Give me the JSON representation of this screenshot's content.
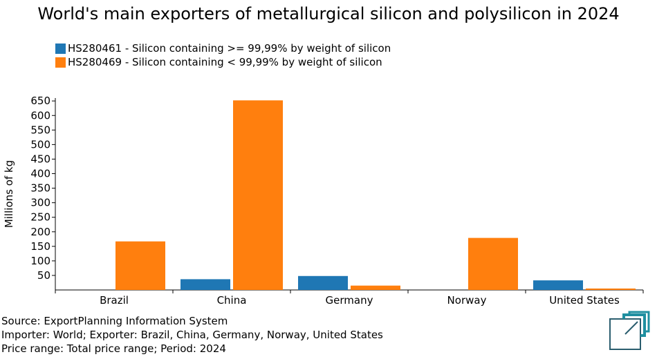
{
  "title": "World's main exporters of metallurgical silicon and polysilicon in 2024",
  "colors": {
    "series1": "#1f77b4",
    "series2": "#ff7f0e",
    "logo": "#1f8fa0",
    "logo_dark": "#2a5d6e"
  },
  "footer": {
    "source": "Source: ExportPlanning Information System",
    "importer": "Importer: World; Exporter: Brazil, China, Germany, Norway, United States",
    "price": "Price range: Total price range; Period: 2024"
  },
  "chart_data": {
    "type": "bar",
    "ylabel": "Millions of kg",
    "ylim": [
      0,
      660
    ],
    "yticks": [
      50,
      100,
      150,
      200,
      250,
      300,
      350,
      400,
      450,
      500,
      550,
      600,
      650
    ],
    "categories": [
      "Brazil",
      "China",
      "Germany",
      "Norway",
      "United States"
    ],
    "series": [
      {
        "name": "HS280461 - Silicon containing >= 99,99% by weight of silicon",
        "color": "#1f77b4",
        "values": [
          0,
          37,
          48,
          0,
          33
        ]
      },
      {
        "name": "HS280469 - Silicon containing < 99,99% by weight of silicon",
        "color": "#ff7f0e",
        "values": [
          167,
          652,
          15,
          179,
          5
        ]
      }
    ],
    "legend_position": "top-left",
    "grid": false
  }
}
